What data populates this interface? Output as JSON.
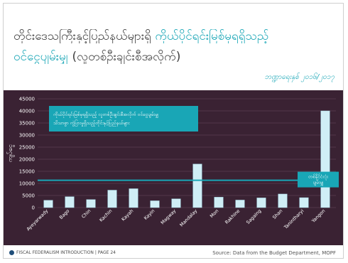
{
  "header": {
    "title_line1_dark": "တိုင်းဒေသကြီးနှင့်ပြည်နယ်များရှိ",
    "title_line1_accent": "ကိုယ်ပိုင်ရင်းမြစ်မှရရှိသည့်",
    "title_line2_accent": "ဝင်ငွေပျမ်းမျှ",
    "title_line2_dark": "(လူတစ်ဦးချင်းစီအလိုက်)",
    "date": "ဘဏ္ဍာရေးနှစ် ၂၀၁၆/၂၀၁၇"
  },
  "chart_data": {
    "type": "bar",
    "ylabel": "ကျပ်ငွေ",
    "ylim": [
      0,
      45000
    ],
    "yticks": [
      0,
      5000,
      10000,
      15000,
      20000,
      25000,
      30000,
      35000,
      40000,
      45000
    ],
    "categories": [
      "Ayeyarwady",
      "Bago",
      "Chin",
      "Kachin",
      "Kayah",
      "Kayin",
      "Magway",
      "Mandalay",
      "Mon",
      "Rakhine",
      "Sagaing",
      "Shan",
      "Tanintharyi",
      "Yangon"
    ],
    "values": [
      3000,
      4500,
      3300,
      7200,
      7800,
      2800,
      3600,
      18000,
      4300,
      3100,
      4000,
      5600,
      4100,
      40000
    ],
    "average_line": 11300,
    "annotation_box": "ကိုယ်ပိုင်ရင်းမြစ်မှရရှိသည့် လူတစ်ဦးချင်းစီအလိုက် ဝင်ငွေပျမ်းမျှ သိသာစွာ ကွဲပြားမှုရှိသည့်တိုင်းနှင့်ပြည်နယ်များ",
    "average_label": "တစ်နိုင်ငံလုံး ပျမ်းမျှ",
    "colors": {
      "panel": "#3a2233",
      "bar": "#cfeef6",
      "bar_stroke": "#9fd3e0",
      "grid": "#5a3f52",
      "average": "#19a6b6",
      "axis_text": "#ffffff"
    }
  },
  "footer": {
    "left": "FISCAL FEDERALISM INTRODUCTION | PAGE 24",
    "right": "Source: Data from the Budget Department, MOPF"
  }
}
